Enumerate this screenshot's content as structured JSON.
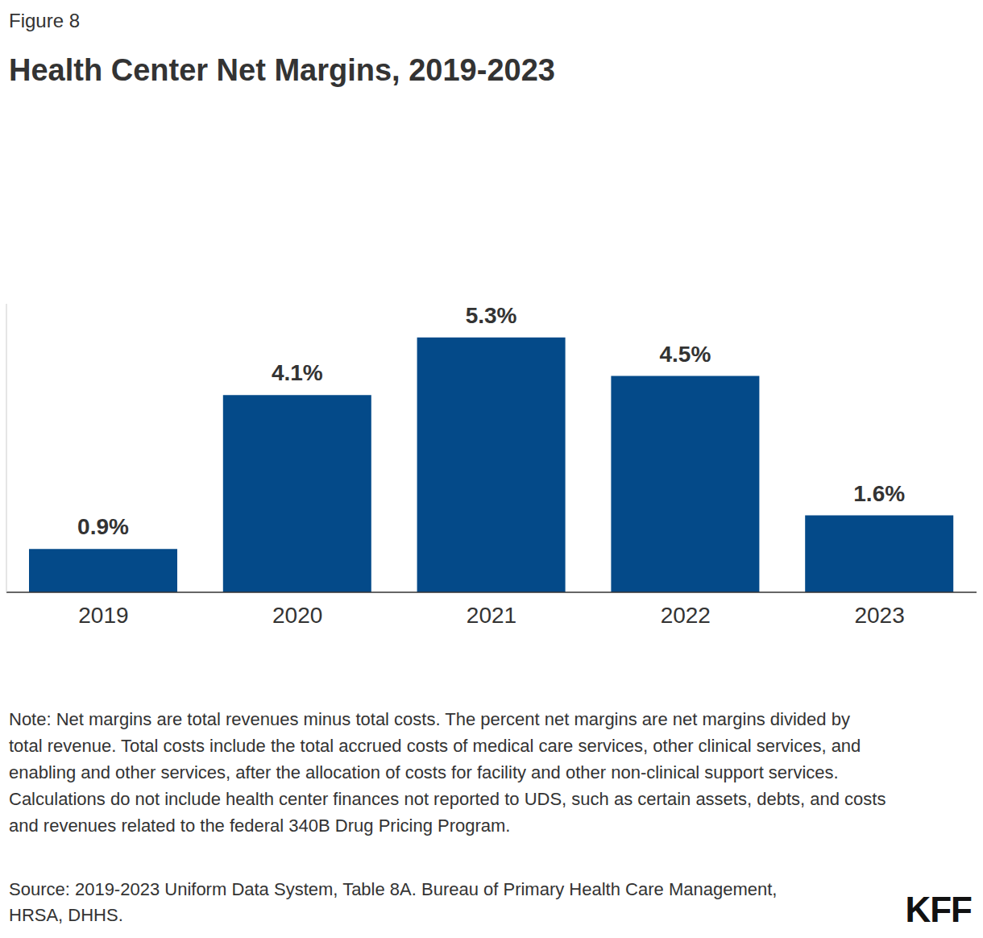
{
  "chart_data": {
    "type": "bar",
    "figure_label": "Figure 8",
    "title": "Health Center Net Margins, 2019-2023",
    "categories": [
      "2019",
      "2020",
      "2021",
      "2022",
      "2023"
    ],
    "values": [
      0.9,
      4.1,
      5.3,
      4.5,
      1.6
    ],
    "value_labels": [
      "0.9%",
      "4.1%",
      "5.3%",
      "4.5%",
      "1.6%"
    ],
    "color": "#044a89",
    "ylim": [
      0,
      6
    ],
    "grid": false,
    "data_labels": true,
    "tick_labels": "x",
    "note": "Note: Net margins are total revenues minus total costs. The percent net margins are net margins divided by total revenue. Total costs include the total accrued costs of medical care services, other clinical services, and enabling and other services, after the allocation of costs for facility and other non-clinical support services. Calculations do not include health center finances not reported to UDS, such as certain assets, debts, and costs and revenues related to the federal 340B Drug Pricing Program.",
    "source": "Source: 2019-2023 Uniform Data System, Table 8A. Bureau of Primary Health Care Management, HRSA, DHHS.",
    "logo": "KFF"
  }
}
